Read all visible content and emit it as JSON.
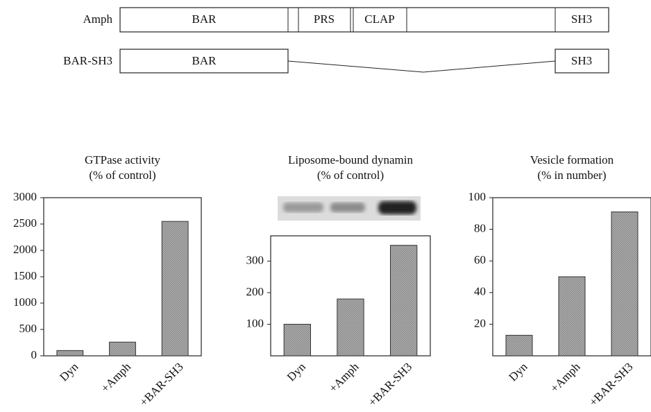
{
  "diagram": {
    "rows": [
      {
        "label": "Amph",
        "domains": [
          "BAR",
          "PRS",
          "CLAP",
          "SH3"
        ]
      },
      {
        "label": "BAR-SH3",
        "domains": [
          "BAR",
          "SH3"
        ]
      }
    ]
  },
  "chart_data": [
    {
      "type": "bar",
      "title": "GTPase activity",
      "subtitle": "(% of control)",
      "categories": [
        "Dyn",
        "+Amph",
        "+BAR-SH3"
      ],
      "values": [
        100,
        260,
        2550
      ],
      "color": "#a9a9a9",
      "ylim": [
        0,
        3000
      ],
      "yticks": [
        0,
        500,
        1000,
        1500,
        2000,
        2500,
        3000
      ]
    },
    {
      "type": "bar",
      "title": "Liposome-bound dynamin",
      "subtitle": "(% of control)",
      "categories": [
        "Dyn",
        "+Amph",
        "+BAR-SH3"
      ],
      "values": [
        100,
        180,
        350
      ],
      "color": "#a9a9a9",
      "ylim": [
        0,
        380
      ],
      "yticks": [
        100,
        200,
        300
      ]
    },
    {
      "type": "bar",
      "title": "Vesicle formation",
      "subtitle": "(% in number)",
      "categories": [
        "Dyn",
        "+Amph",
        "+BAR-SH3"
      ],
      "values": [
        13,
        50,
        91
      ],
      "color": "#a9a9a9",
      "ylim": [
        0,
        100
      ],
      "yticks": [
        20,
        40,
        60,
        80,
        100
      ]
    }
  ]
}
